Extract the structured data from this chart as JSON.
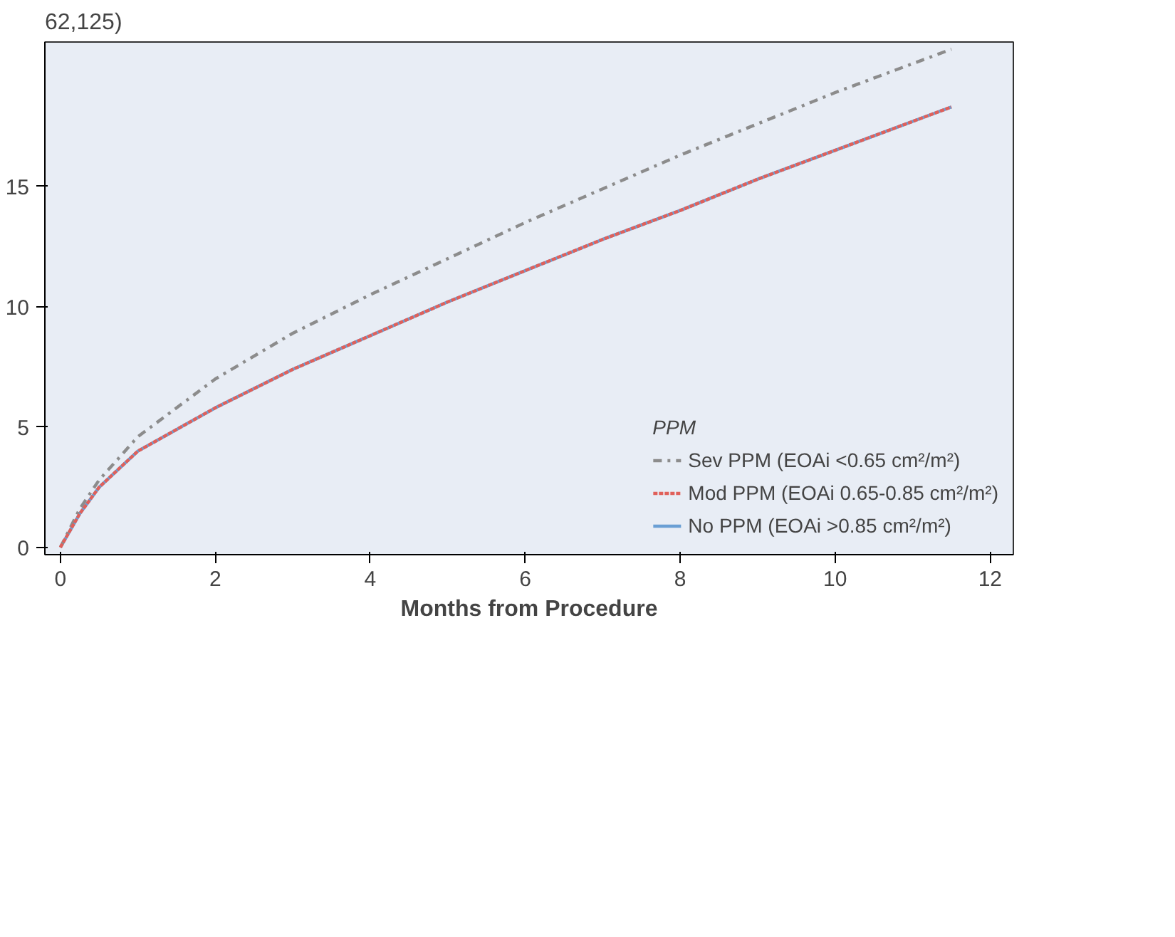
{
  "chart_data": {
    "type": "line",
    "xlabel": "Months from Procedure",
    "legend_title": "PPM",
    "annotations": [
      "62,125)"
    ],
    "x": [
      0,
      0.25,
      0.5,
      1,
      2,
      3,
      4,
      5,
      6,
      7,
      8,
      9,
      10,
      11,
      11.5
    ],
    "series": [
      {
        "name": "Sev PPM (EOAi <0.65 cm²/m²)",
        "color": "#8c8c8c",
        "line_style": "dashdot",
        "values": [
          0,
          1.6,
          2.8,
          4.6,
          7,
          8.9,
          10.5,
          12,
          13.5,
          14.9,
          16.3,
          17.6,
          18.9,
          20.1,
          20.7
        ]
      },
      {
        "name": "Mod PPM (EOAi 0.65-0.85 cm²/m²)",
        "color": "#e0605a",
        "line_style": "dashed",
        "values": [
          0,
          1.4,
          2.5,
          4,
          5.8,
          7.4,
          8.8,
          10.2,
          11.5,
          12.8,
          14,
          15.3,
          16.5,
          17.7,
          18.3
        ]
      },
      {
        "name": "No PPM (EOAi >0.85 cm²/m²)",
        "color": "#6a9fd4",
        "line_style": "solid",
        "values": [
          0,
          1.4,
          2.5,
          4,
          5.8,
          7.4,
          8.8,
          10.2,
          11.5,
          12.8,
          14,
          15.3,
          16.5,
          17.7,
          18.3
        ]
      }
    ],
    "xlim": [
      -0.2,
      12.3
    ],
    "ylim": [
      -0.3,
      21
    ],
    "xticks": [
      0,
      2,
      4,
      6,
      8,
      10,
      12
    ],
    "yticks": [
      0,
      5,
      10,
      15
    ],
    "grid": false,
    "legend": "bottom right",
    "marker": "none"
  }
}
